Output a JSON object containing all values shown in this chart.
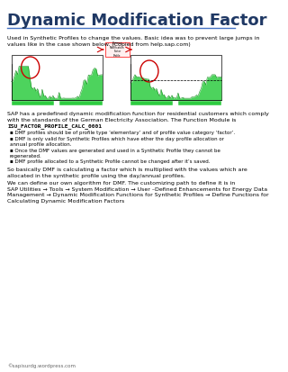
{
  "title": "Dynamic Modification Factor",
  "bg_color": "#ffffff",
  "title_color": "#1f3864",
  "title_fontsize": 13,
  "body_text_color": "#000000",
  "intro_text": "Used in Synthetic Profiles to change the values. Basic idea was to prevent large jumps in\nvalues like in the case shown below. (Copied from help.sap.com)",
  "para1": "SAP has a predefined dynamic modification function for residential customers which comply\nwith the standards of the German Electricity Association. The Function Module is",
  "para1_bold": "ISU_FACTOR_PROFILE_CALC_0001",
  "bullets": [
    "DMF profiles should be of profile type ‘elementary’ and of profile value category ‘factor’.",
    "DMF is only valid for Synthetic Profiles which have ether the day profile allocation or\nannual profile allocation.",
    "Once the DMF values are generated and used in a Synthetic Profile they cannot be\nregenerated.",
    "DMF profile allocated to a Synthetic Profile cannot be changed after it’s saved."
  ],
  "para2_full": "So basically DMF is calculating a factor which is multiplied with the values which are\nallocated in the synthetic profile using the day/annual profiles.",
  "para3": "We can define our own algorithm for DMF. The customizing path to define it is in\nSAP Utilities → Tools → System Modification → User –Defined Enhancements for Energy Data\nManagement → Dynamic Modification Functions for Synthetic Profiles → Define Functions for\nCalculating Dynamic Modification Factors",
  "footer": "©sapisurdg.wordpress.com",
  "separator_color": "#4472c4"
}
